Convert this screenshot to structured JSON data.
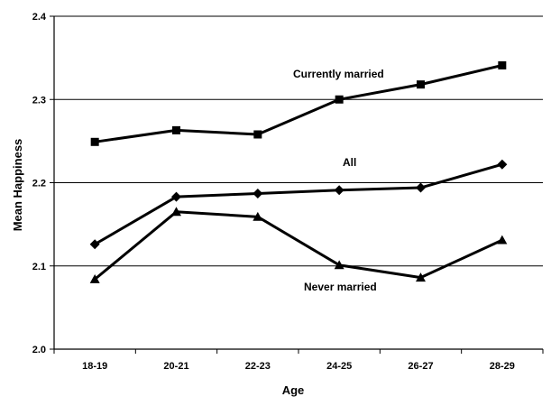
{
  "chart_data": {
    "type": "line",
    "title": "",
    "xlabel": "Age",
    "ylabel": "Mean Happiness",
    "categories": [
      "18-19",
      "20-21",
      "22-23",
      "24-25",
      "26-27",
      "28-29"
    ],
    "ylim": [
      2.0,
      2.4
    ],
    "yticks": [
      "2.0",
      "2.1",
      "2.2",
      "2.3",
      "2.4"
    ],
    "grid": true,
    "legend": "none",
    "series": [
      {
        "name": "Currently married",
        "marker": "square",
        "values": [
          2.249,
          2.263,
          2.258,
          2.3,
          2.318,
          2.341
        ]
      },
      {
        "name": "All",
        "marker": "diamond",
        "values": [
          2.126,
          2.183,
          2.187,
          2.191,
          2.194,
          2.222
        ]
      },
      {
        "name": "Never married",
        "marker": "triangle",
        "values": [
          2.084,
          2.165,
          2.159,
          2.101,
          2.086,
          2.131
        ]
      }
    ],
    "line_color": "#000000"
  }
}
